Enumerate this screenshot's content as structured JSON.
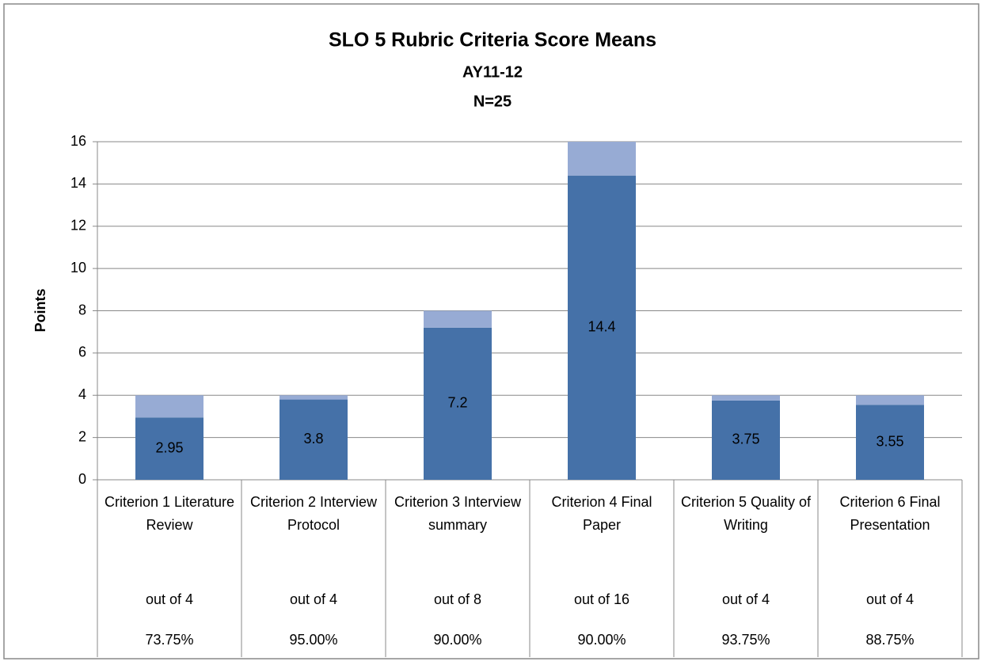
{
  "chart_data": {
    "type": "stacked_bar",
    "title": "SLO 5 Rubric Criteria Score Means",
    "subtitle": [
      "AY11-12",
      "N=25"
    ],
    "y_label": "Points",
    "categories": [
      "Criterion 1 Literature Review",
      "Criterion 2 Interview Protocol",
      "Criterion 3 Interview summary",
      "Criterion 4  Final Paper",
      "Criterion 5 Quality of Writing",
      "Criterion 6 Final Presentation"
    ],
    "table_rows": [
      [
        "out of 4",
        "out of 4",
        "out of 8",
        "out of 16",
        "out of 4",
        "out of 4"
      ],
      [
        "73.75%",
        "95.00%",
        "90.00%",
        "90.00%",
        "93.75%",
        "88.75%"
      ]
    ],
    "series": [
      {
        "color": "#4571a8",
        "values": [
          2.95,
          3.8,
          7.2,
          14.4,
          3.75,
          3.55
        ],
        "data_labels": true
      },
      {
        "color": "#97abd4",
        "values": [
          1.05,
          0.2,
          0.8,
          1.6,
          0.25,
          0.45
        ]
      }
    ],
    "ylim": [
      0,
      16
    ],
    "yticks": [
      0,
      2,
      4,
      6,
      8,
      10,
      12,
      14,
      16
    ],
    "grid": true
  }
}
